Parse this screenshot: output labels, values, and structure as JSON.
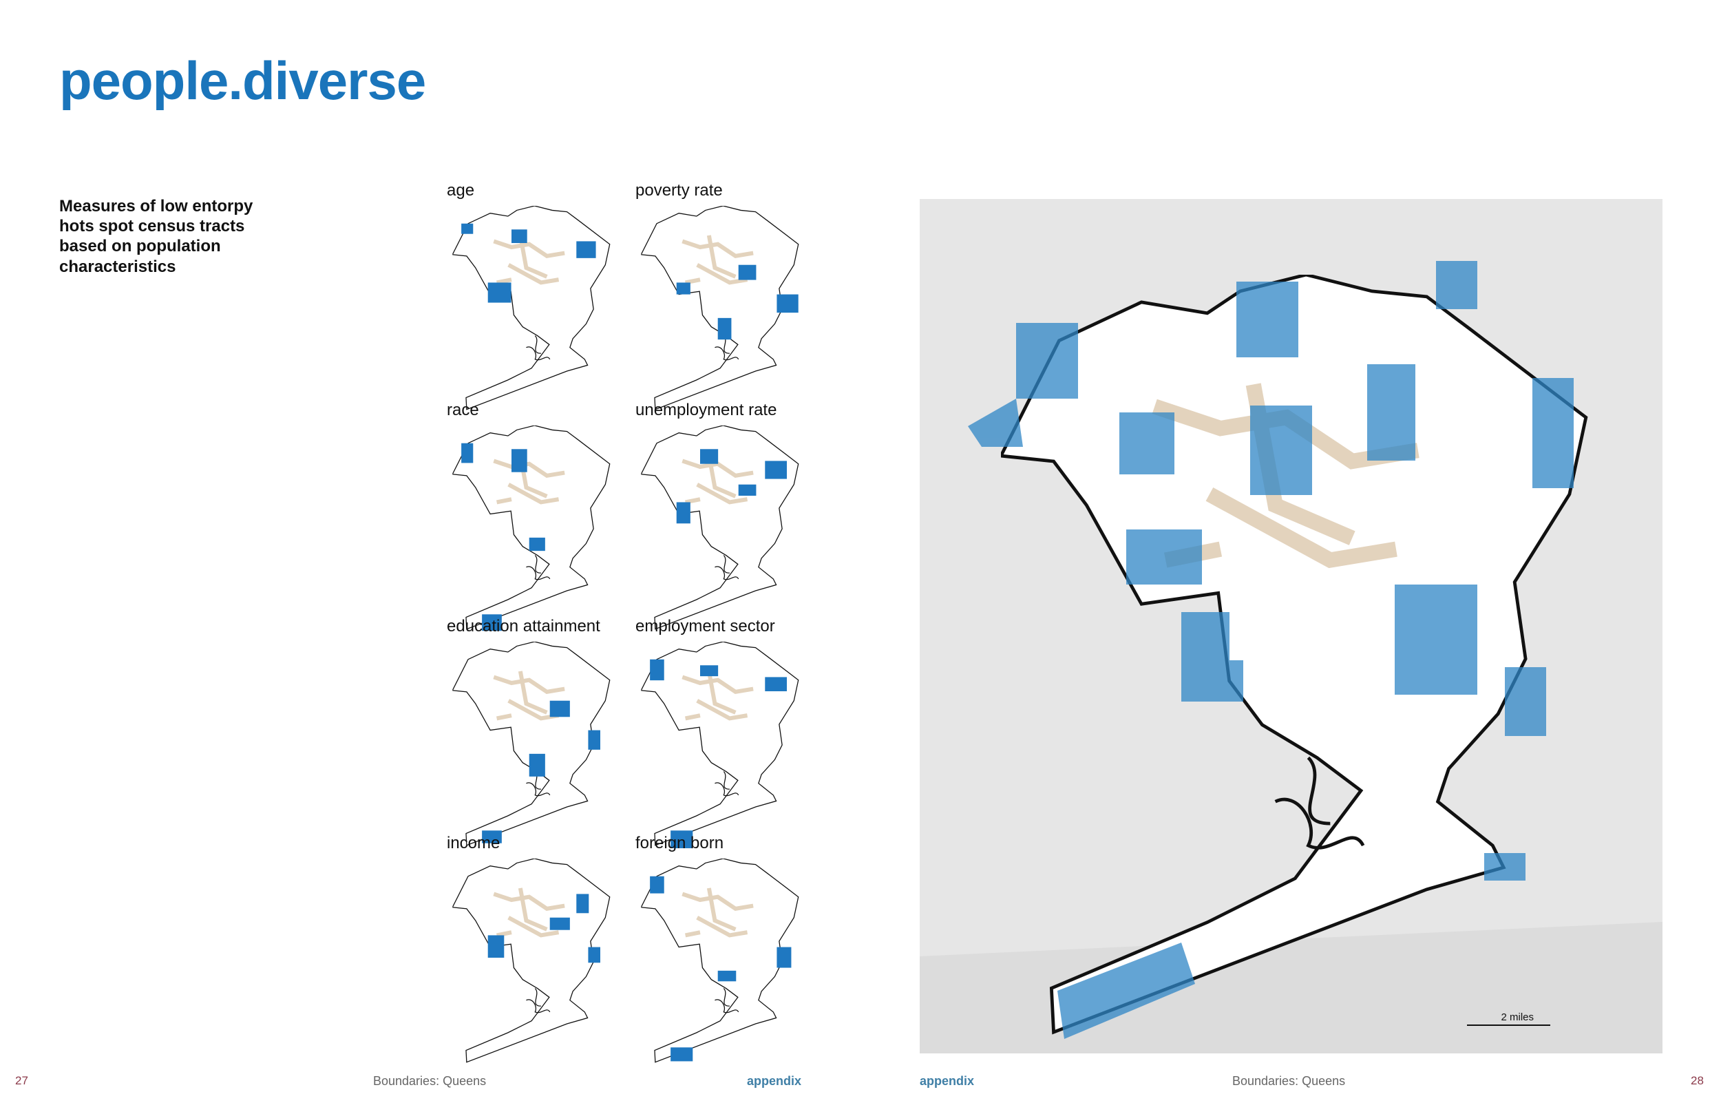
{
  "header": {
    "title": "people.diverse"
  },
  "intro": {
    "lines": [
      "Measures of low entorpy",
      "hots spot census tracts",
      "based on population",
      "characteristics"
    ]
  },
  "small_maps": [
    {
      "label": "age"
    },
    {
      "label": "poverty rate"
    },
    {
      "label": "race"
    },
    {
      "label": "unemployment rate"
    },
    {
      "label": "education attainment"
    },
    {
      "label": "employment sector"
    },
    {
      "label": "income"
    },
    {
      "label": "foreign born"
    }
  ],
  "large_map": {
    "scale_label": "2 miles"
  },
  "footer": {
    "left": {
      "page": "27",
      "source": "Boundaries: Queens",
      "section": "appendix"
    },
    "right": {
      "section": "appendix",
      "source": "Boundaries: Queens",
      "page": "28"
    }
  }
}
